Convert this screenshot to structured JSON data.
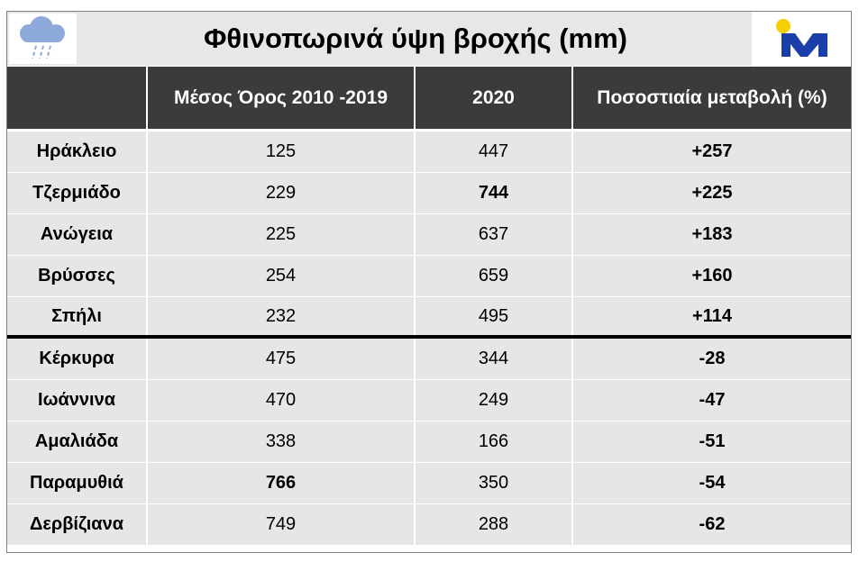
{
  "header": {
    "title": "Φθινοπωρινά ύψη βροχής (mm)"
  },
  "table": {
    "columns": [
      "Μέσος Όρος 2010 -2019",
      "2020",
      "Ποσοστιαία μεταβολή (%)"
    ],
    "rows": [
      [
        "Ηράκλειο",
        "125",
        "447",
        "+257"
      ],
      [
        "Τζερμιάδο",
        "229",
        "744",
        "+225"
      ],
      [
        "Ανώγεια",
        "225",
        "637",
        "+183"
      ],
      [
        "Βρύσσες",
        "254",
        "659",
        "+160"
      ],
      [
        "Σπήλι",
        "232",
        "495",
        "+114"
      ],
      [
        "Κέρκυρα",
        "475",
        "344",
        "-28"
      ],
      [
        "Ιωάννινα",
        "470",
        "249",
        "-47"
      ],
      [
        "Αμαλιάδα",
        "338",
        "166",
        "-51"
      ],
      [
        "Παραμυθιά",
        "766",
        "350",
        "-54"
      ],
      [
        "Δερβίζιανα",
        "749",
        "288",
        "-62"
      ]
    ]
  }
}
